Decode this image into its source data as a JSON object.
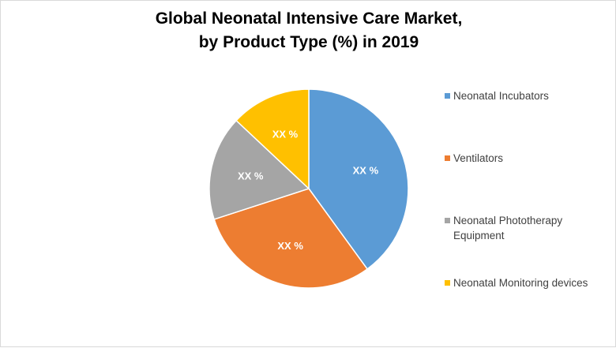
{
  "chart_data": {
    "type": "pie",
    "title_lines": [
      "Global Neonatal Intensive Care Market,",
      "by Product Type (%) in 2019"
    ],
    "slices": [
      {
        "name": "Neonatal Incubators",
        "value": 40,
        "label": "XX %",
        "color": "#5b9bd5"
      },
      {
        "name": "Ventilators",
        "value": 30,
        "label": "XX %",
        "color": "#ed7d31"
      },
      {
        "name": "Neonatal Phototherapy Equipment",
        "value": 17,
        "label": "XX %",
        "color": "#a5a5a5"
      },
      {
        "name": "Neonatal Monitoring devices",
        "value": 13,
        "label": "XX %",
        "color": "#ffc000"
      }
    ],
    "legend_position": "right"
  },
  "legend": {
    "items": [
      {
        "label": "Neonatal Incubators",
        "color": "#5b9bd5"
      },
      {
        "label": "Ventilators",
        "color": "#ed7d31"
      },
      {
        "label": "Neonatal Phototherapy\nEquipment",
        "color": "#a5a5a5"
      },
      {
        "label": "Neonatal Monitoring devices",
        "color": "#ffc000"
      }
    ]
  }
}
